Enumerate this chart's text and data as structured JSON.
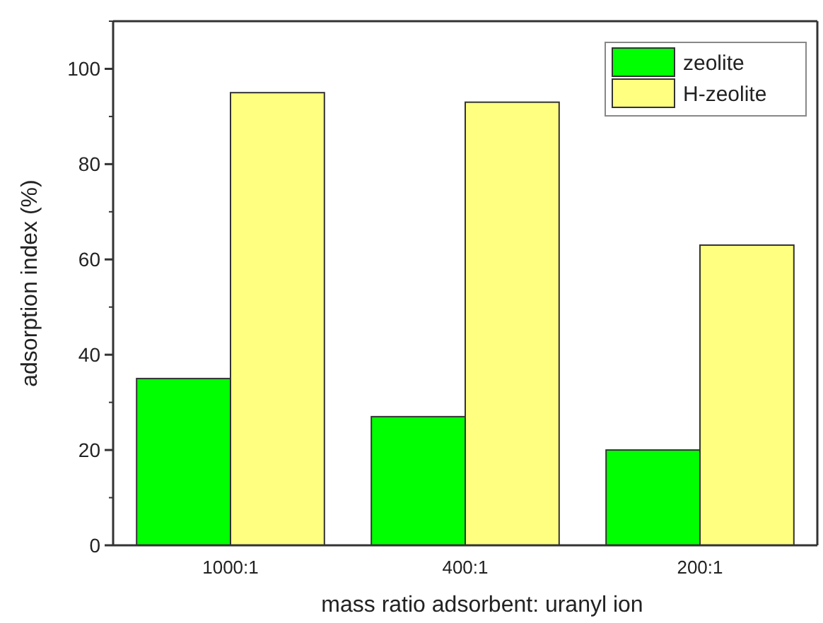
{
  "chart_data": {
    "type": "bar",
    "xlabel": "mass ratio adsorbent: uranyl ion",
    "ylabel": "adsorption index (%)",
    "categories": [
      "1000:1",
      "400:1",
      "200:1"
    ],
    "series": [
      {
        "name": "zeolite",
        "color": "#00ff00",
        "values": [
          35,
          27,
          20
        ]
      },
      {
        "name": "H-zeolite",
        "color": "#ffff80",
        "values": [
          95,
          93,
          63
        ]
      }
    ],
    "ylim": [
      0,
      110
    ],
    "yticks": [
      0,
      20,
      40,
      60,
      80,
      100
    ],
    "grid": false,
    "legend": "top right"
  }
}
